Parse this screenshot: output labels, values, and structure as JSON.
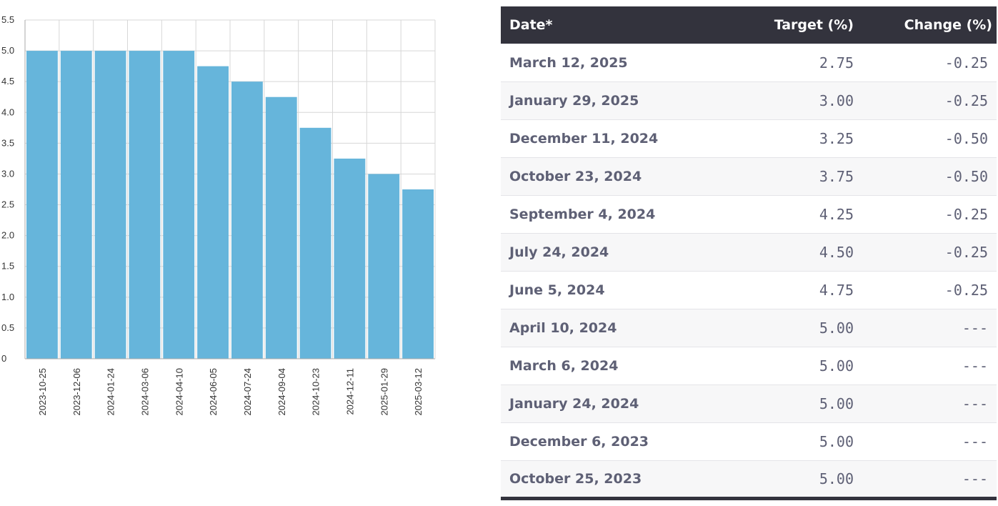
{
  "chart_data": {
    "type": "bar",
    "title": "",
    "xlabel": "",
    "ylabel": "",
    "categories": [
      "2023-10-25",
      "2023-12-06",
      "2024-01-24",
      "2024-03-06",
      "2024-04-10",
      "2024-06-05",
      "2024-07-24",
      "2024-09-04",
      "2024-10-23",
      "2024-12-11",
      "2025-01-29",
      "2025-03-12"
    ],
    "values": [
      5.0,
      5.0,
      5.0,
      5.0,
      5.0,
      4.75,
      4.5,
      4.25,
      3.75,
      3.25,
      3.0,
      2.75
    ],
    "ylim": [
      0,
      5.5
    ],
    "yticks": [
      "0",
      "0.5",
      "1.0",
      "1.5",
      "2.0",
      "2.5",
      "3.0",
      "3.5",
      "4.0",
      "4.5",
      "5.0",
      "5.5"
    ],
    "grid": true,
    "legend": "none",
    "bar_color": "#66b5db"
  },
  "table": {
    "headers": {
      "date": "Date*",
      "target": "Target (%)",
      "change": "Change (%)"
    },
    "rows": [
      {
        "date": "March 12, 2025",
        "target": "2.75",
        "change": "-0.25"
      },
      {
        "date": "January 29, 2025",
        "target": "3.00",
        "change": "-0.25"
      },
      {
        "date": "December 11, 2024",
        "target": "3.25",
        "change": "-0.50"
      },
      {
        "date": "October 23, 2024",
        "target": "3.75",
        "change": "-0.50"
      },
      {
        "date": "September 4, 2024",
        "target": "4.25",
        "change": "-0.25"
      },
      {
        "date": "July 24, 2024",
        "target": "4.50",
        "change": "-0.25"
      },
      {
        "date": "June 5, 2024",
        "target": "4.75",
        "change": "-0.25"
      },
      {
        "date": "April 10, 2024",
        "target": "5.00",
        "change": "---"
      },
      {
        "date": "March 6, 2024",
        "target": "5.00",
        "change": "---"
      },
      {
        "date": "January 24, 2024",
        "target": "5.00",
        "change": "---"
      },
      {
        "date": "December 6, 2023",
        "target": "5.00",
        "change": "---"
      },
      {
        "date": "October 25, 2023",
        "target": "5.00",
        "change": "---"
      }
    ]
  }
}
